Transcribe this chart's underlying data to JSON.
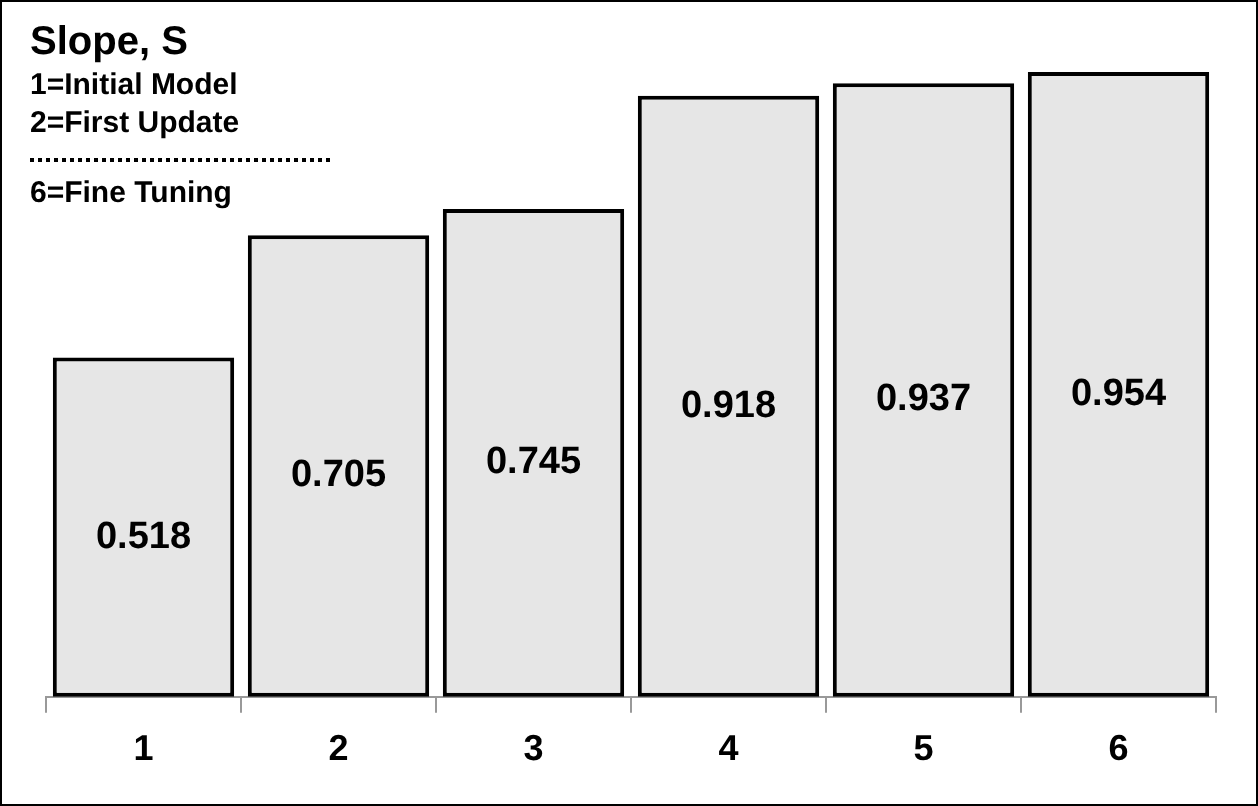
{
  "chart_data": {
    "type": "bar",
    "title": "Slope, S",
    "annotations": [
      "1=Initial Model",
      "2=First Update",
      "6=Fine Tuning"
    ],
    "categories": [
      "1",
      "2",
      "3",
      "4",
      "5",
      "6"
    ],
    "values": [
      0.518,
      0.705,
      0.745,
      0.918,
      0.937,
      0.954
    ],
    "color": "#e6e6e6",
    "tick_labels": "x",
    "data_labels": true,
    "grid": false,
    "legend": false
  }
}
